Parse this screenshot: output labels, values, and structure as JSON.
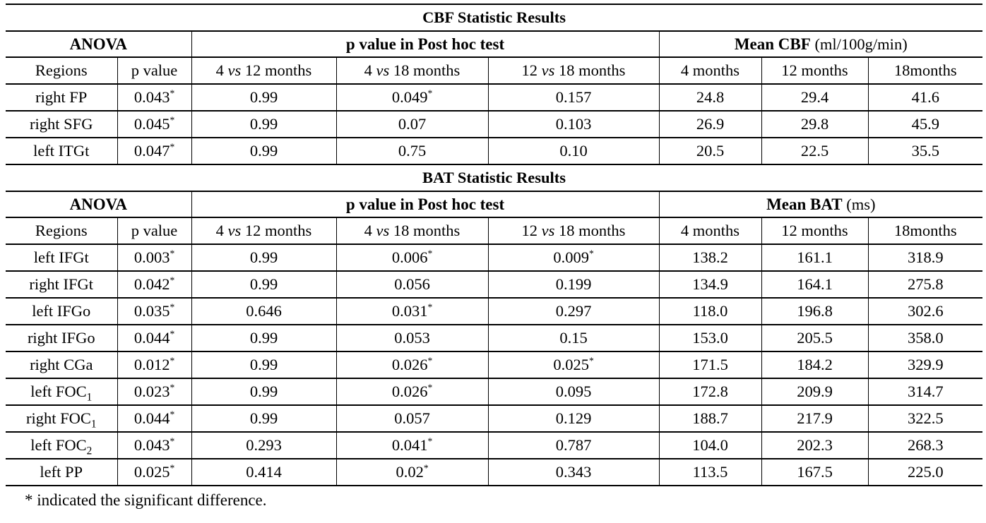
{
  "tables": [
    {
      "title": "CBF Statistic Results",
      "group_headers": {
        "anova": "ANOVA",
        "posthoc": "p value in Post hoc test",
        "mean_bold": "Mean CBF",
        "mean_unit": " (ml/100g/min)"
      },
      "columns": [
        "Regions",
        "p value",
        "4 vs 12 months",
        "4 vs 18 months",
        "12 vs 18 months",
        "4 months",
        "12 months",
        "18months"
      ],
      "rows": [
        [
          "right FP",
          "0.043*",
          "0.99",
          "0.049*",
          "0.157",
          "24.8",
          "29.4",
          "41.6"
        ],
        [
          "right SFG",
          "0.045*",
          "0.99",
          "0.07",
          "0.103",
          "26.9",
          "29.8",
          "45.9"
        ],
        [
          "left ITGt",
          "0.047*",
          "0.99",
          "0.75",
          "0.10",
          "20.5",
          "22.5",
          "35.5"
        ]
      ]
    },
    {
      "title": "BAT Statistic Results",
      "group_headers": {
        "anova": "ANOVA",
        "posthoc": "p value in Post hoc test",
        "mean_bold": "Mean BAT",
        "mean_unit": " (ms)"
      },
      "columns": [
        "Regions",
        "p value",
        "4 vs 12 months",
        "4 vs 18 months",
        "12 vs 18 months",
        "4 months",
        "12 months",
        "18months"
      ],
      "rows": [
        [
          "left IFGt",
          "0.003*",
          "0.99",
          "0.006*",
          "0.009*",
          "138.2",
          "161.1",
          "318.9"
        ],
        [
          "right IFGt",
          "0.042*",
          "0.99",
          "0.056",
          "0.199",
          "134.9",
          "164.1",
          "275.8"
        ],
        [
          "left IFGo",
          "0.035*",
          "0.646",
          "0.031*",
          "0.297",
          "118.0",
          "196.8",
          "302.6"
        ],
        [
          "right IFGo",
          "0.044*",
          "0.99",
          "0.053",
          "0.15",
          "153.0",
          "205.5",
          "358.0"
        ],
        [
          "right CGa",
          "0.012*",
          "0.99",
          "0.026*",
          "0.025*",
          "171.5",
          "184.2",
          "329.9"
        ],
        [
          "left FOC_1",
          "0.023*",
          "0.99",
          "0.026*",
          "0.095",
          "172.8",
          "209.9",
          "314.7"
        ],
        [
          "right FOC_1",
          "0.044*",
          "0.99",
          "0.057",
          "0.129",
          "188.7",
          "217.9",
          "322.5"
        ],
        [
          "left FOC_2",
          "0.043*",
          "0.293",
          "0.041*",
          "0.787",
          "104.0",
          "202.3",
          "268.3"
        ],
        [
          "left PP",
          "0.025*",
          "0.414",
          "0.02*",
          "0.343",
          "113.5",
          "167.5",
          "225.0"
        ]
      ]
    }
  ],
  "note": "* indicated the significant difference.",
  "colors": {
    "text": "#000000",
    "background": "#ffffff",
    "rule": "#000000"
  }
}
